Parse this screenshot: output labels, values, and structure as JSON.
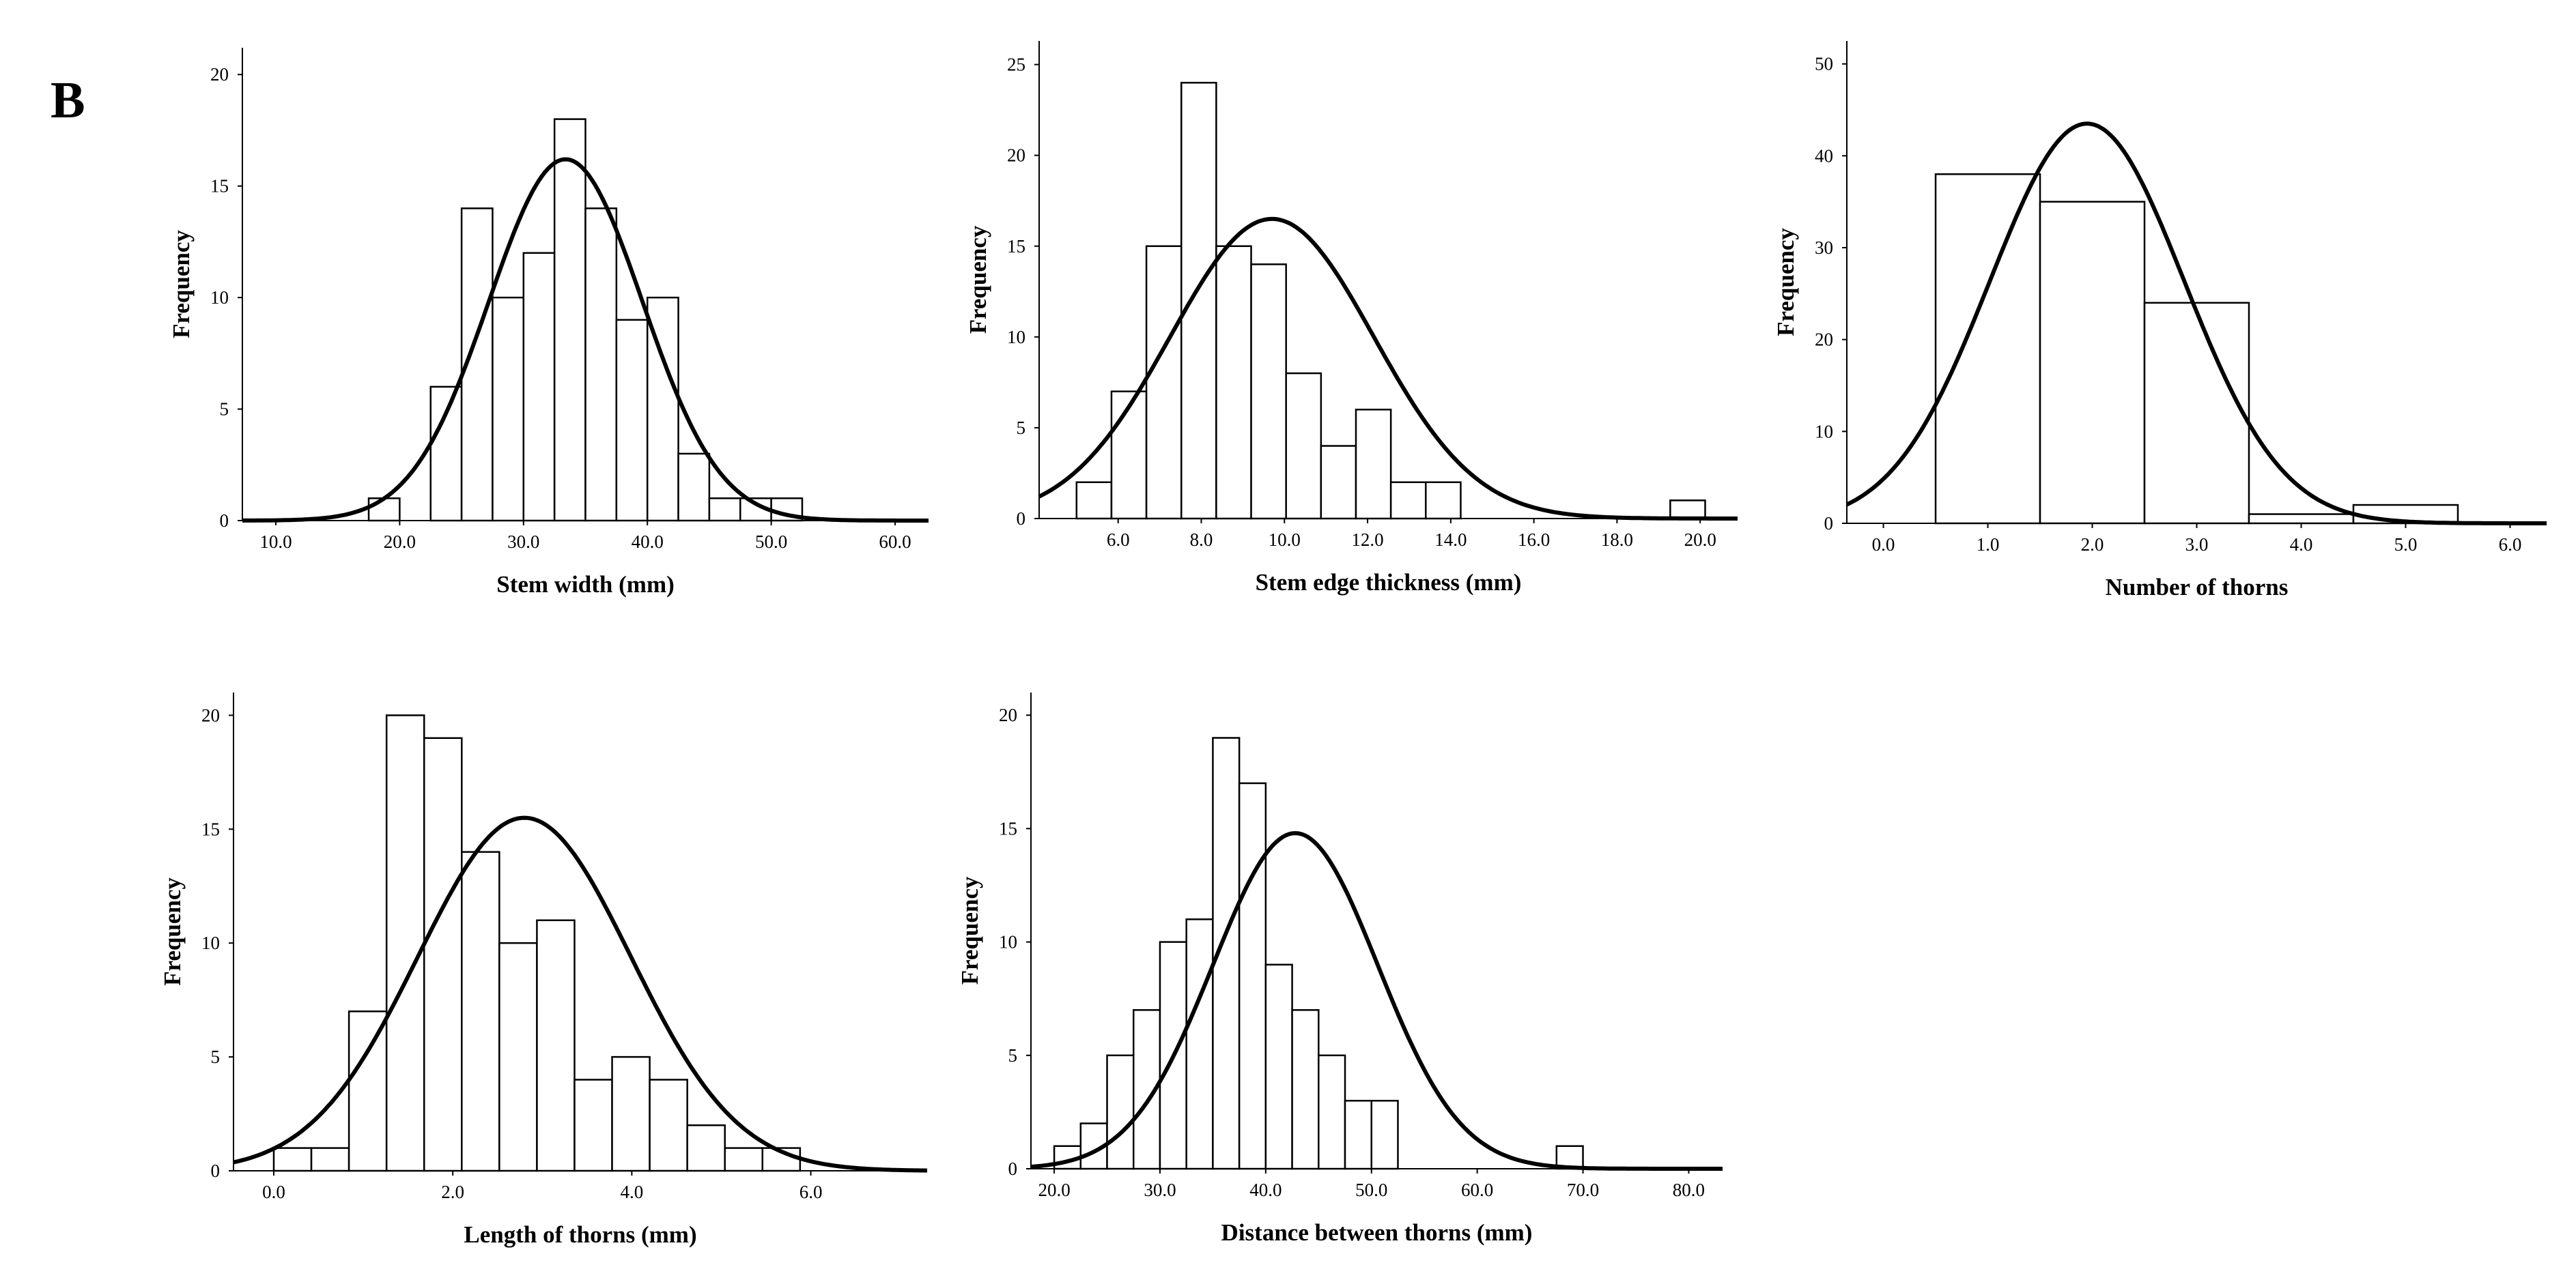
{
  "figure": {
    "panel_letter": "B"
  },
  "chart_data": [
    {
      "type": "histogram",
      "xlabel": "Stem width (mm)",
      "ylabel": "Frequency",
      "xlim": [
        7.3,
        62.7
      ],
      "ylim": [
        0,
        21.2
      ],
      "x_ticks": [
        10,
        20,
        30,
        40,
        50,
        60
      ],
      "x_tick_labels": [
        "10.0",
        "20.0",
        "30.0",
        "40.0",
        "50.0",
        "60.0"
      ],
      "y_ticks": [
        0,
        5,
        10,
        15,
        20
      ],
      "y_tick_labels": [
        "0",
        "5",
        "10",
        "15",
        "20"
      ],
      "bin_width": 2.5,
      "bins": [
        {
          "start": 17.5,
          "count": 1
        },
        {
          "start": 20.0,
          "count": 0
        },
        {
          "start": 22.5,
          "count": 6
        },
        {
          "start": 25.0,
          "count": 14
        },
        {
          "start": 27.5,
          "count": 10
        },
        {
          "start": 30.0,
          "count": 12
        },
        {
          "start": 32.5,
          "count": 18
        },
        {
          "start": 35.0,
          "count": 14
        },
        {
          "start": 37.5,
          "count": 9
        },
        {
          "start": 40.0,
          "count": 10
        },
        {
          "start": 42.5,
          "count": 3
        },
        {
          "start": 45.0,
          "count": 1
        },
        {
          "start": 47.5,
          "count": 1
        },
        {
          "start": 50.0,
          "count": 1
        }
      ],
      "normal_curve": {
        "mean": 33.4,
        "sd": 6.2,
        "peak": 16.2
      }
    },
    {
      "type": "histogram",
      "xlabel": "Stem edge thickness (mm)",
      "ylabel": "Frequency",
      "xlim": [
        4.1,
        20.9
      ],
      "ylim": [
        0,
        26.3
      ],
      "x_ticks": [
        6,
        8,
        10,
        12,
        14,
        16,
        18,
        20
      ],
      "x_tick_labels": [
        "6.0",
        "8.0",
        "10.0",
        "12.0",
        "14.0",
        "16.0",
        "18.0",
        "20.0"
      ],
      "y_ticks": [
        0,
        5,
        10,
        15,
        20,
        25
      ],
      "y_tick_labels": [
        "0",
        "5",
        "10",
        "15",
        "20",
        "25"
      ],
      "bin_width": 0.84,
      "bins": [
        {
          "start": 5.0,
          "count": 2
        },
        {
          "start": 5.84,
          "count": 7
        },
        {
          "start": 6.68,
          "count": 15
        },
        {
          "start": 7.52,
          "count": 24
        },
        {
          "start": 8.36,
          "count": 15
        },
        {
          "start": 9.2,
          "count": 14
        },
        {
          "start": 10.04,
          "count": 8
        },
        {
          "start": 10.88,
          "count": 4
        },
        {
          "start": 11.72,
          "count": 6
        },
        {
          "start": 12.56,
          "count": 2
        },
        {
          "start": 13.4,
          "count": 2
        },
        {
          "start": 14.24,
          "count": 0
        },
        {
          "start": 15.08,
          "count": 0
        },
        {
          "start": 15.92,
          "count": 0
        },
        {
          "start": 16.76,
          "count": 0
        },
        {
          "start": 17.6,
          "count": 0
        },
        {
          "start": 18.44,
          "count": 0
        },
        {
          "start": 19.28,
          "count": 1
        }
      ],
      "normal_curve": {
        "mean": 9.7,
        "sd": 2.45,
        "peak": 16.5
      }
    },
    {
      "type": "histogram",
      "xlabel": "Number of thorns",
      "ylabel": "Frequency",
      "xlim": [
        -0.35,
        6.35
      ],
      "ylim": [
        0,
        52.5
      ],
      "x_ticks": [
        0,
        1,
        2,
        3,
        4,
        5,
        6
      ],
      "x_tick_labels": [
        "0.0",
        "1.0",
        "2.0",
        "3.0",
        "4.0",
        "5.0",
        "6.0"
      ],
      "y_ticks": [
        0,
        10,
        20,
        30,
        40,
        50
      ],
      "y_tick_labels": [
        "0",
        "10",
        "20",
        "30",
        "40",
        "50"
      ],
      "bin_width": 1.0,
      "bins": [
        {
          "start": 0.5,
          "count": 38
        },
        {
          "start": 1.5,
          "count": 35
        },
        {
          "start": 2.5,
          "count": 24
        },
        {
          "start": 3.5,
          "count": 1
        },
        {
          "start": 4.5,
          "count": 2
        }
      ],
      "normal_curve": {
        "mean": 1.95,
        "sd": 0.93,
        "peak": 43.5
      }
    },
    {
      "type": "histogram",
      "xlabel": "Length of thorns (mm)",
      "ylabel": "Frequency",
      "xlim": [
        -0.45,
        7.3
      ],
      "ylim": [
        0,
        21
      ],
      "x_ticks": [
        0,
        2,
        4,
        6
      ],
      "x_tick_labels": [
        "0.0",
        "2.0",
        "4.0",
        "6.0"
      ],
      "y_ticks": [
        0,
        5,
        10,
        15,
        20
      ],
      "y_tick_labels": [
        "0",
        "5",
        "10",
        "15",
        "20"
      ],
      "bin_width": 0.42,
      "bins": [
        {
          "start": 0.0,
          "count": 1
        },
        {
          "start": 0.42,
          "count": 1
        },
        {
          "start": 0.84,
          "count": 7
        },
        {
          "start": 1.26,
          "count": 20
        },
        {
          "start": 1.68,
          "count": 19
        },
        {
          "start": 2.1,
          "count": 14
        },
        {
          "start": 2.52,
          "count": 10
        },
        {
          "start": 2.94,
          "count": 11
        },
        {
          "start": 3.36,
          "count": 4
        },
        {
          "start": 3.78,
          "count": 5
        },
        {
          "start": 4.2,
          "count": 4
        },
        {
          "start": 4.62,
          "count": 2
        },
        {
          "start": 5.04,
          "count": 1
        },
        {
          "start": 5.46,
          "count": 1
        }
      ],
      "normal_curve": {
        "mean": 2.8,
        "sd": 1.19,
        "peak": 15.5
      }
    },
    {
      "type": "histogram",
      "xlabel": "Distance between thorns  (mm)",
      "ylabel": "Frequency",
      "xlim": [
        17.8,
        83.2
      ],
      "ylim": [
        0,
        21
      ],
      "x_ticks": [
        20,
        30,
        40,
        50,
        60,
        70,
        80
      ],
      "x_tick_labels": [
        "20.0",
        "30.0",
        "40.0",
        "50.0",
        "60.0",
        "70.0",
        "80.0"
      ],
      "y_ticks": [
        0,
        5,
        10,
        15,
        20
      ],
      "y_tick_labels": [
        "0",
        "5",
        "10",
        "15",
        "20"
      ],
      "bin_width": 2.5,
      "bins": [
        {
          "start": 20.0,
          "count": 1
        },
        {
          "start": 22.5,
          "count": 2
        },
        {
          "start": 25.0,
          "count": 5
        },
        {
          "start": 27.5,
          "count": 7
        },
        {
          "start": 30.0,
          "count": 10
        },
        {
          "start": 32.5,
          "count": 11
        },
        {
          "start": 35.0,
          "count": 19
        },
        {
          "start": 37.5,
          "count": 17
        },
        {
          "start": 40.0,
          "count": 9
        },
        {
          "start": 42.5,
          "count": 7
        },
        {
          "start": 45.0,
          "count": 5
        },
        {
          "start": 47.5,
          "count": 3
        },
        {
          "start": 50.0,
          "count": 3
        },
        {
          "start": 52.5,
          "count": 0
        },
        {
          "start": 55.0,
          "count": 0
        },
        {
          "start": 57.5,
          "count": 0
        },
        {
          "start": 60.0,
          "count": 0
        },
        {
          "start": 62.5,
          "count": 0
        },
        {
          "start": 65.0,
          "count": 0
        },
        {
          "start": 67.5,
          "count": 1
        }
      ],
      "normal_curve": {
        "mean": 42.8,
        "sd": 7.8,
        "peak": 14.8
      }
    }
  ]
}
